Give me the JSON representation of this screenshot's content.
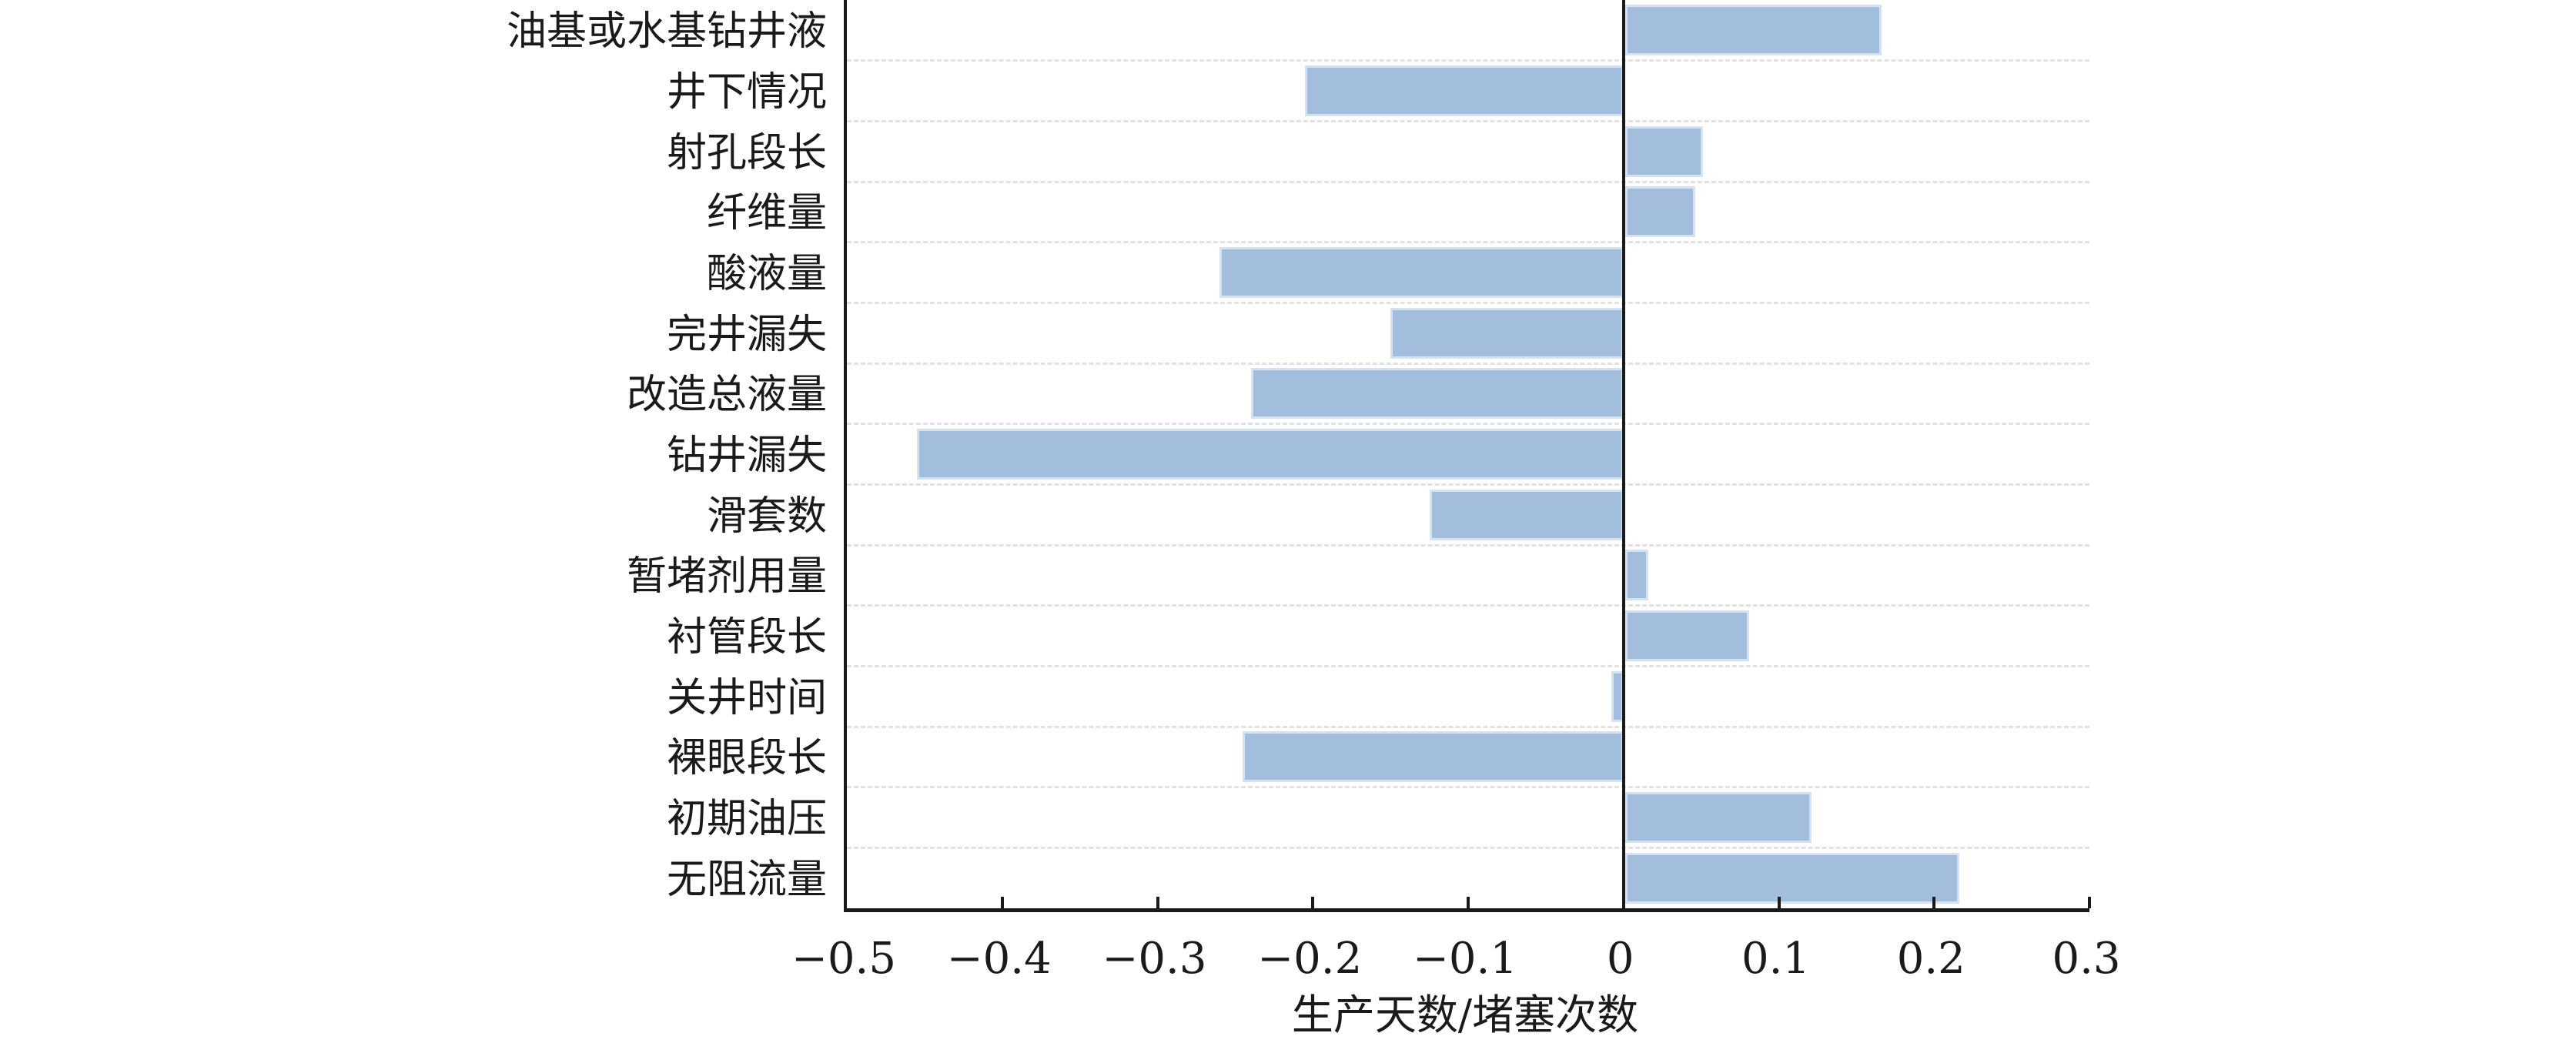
{
  "chart_data": {
    "type": "bar",
    "orientation": "horizontal",
    "title": "",
    "xlabel": "生产天数/堵塞次数",
    "ylabel": "",
    "categories": [
      "油基或水基钻井液",
      "井下情况",
      "射孔段长",
      "纤维量",
      "酸液量",
      "完井漏失",
      "改造总液量",
      "钻井漏失",
      "滑套数",
      "暂堵剂用量",
      "衬管段长",
      "关井时间",
      "裸眼段长",
      "初期油压",
      "无阻流量"
    ],
    "values": [
      0.165,
      -0.205,
      0.05,
      0.045,
      -0.26,
      -0.15,
      -0.24,
      -0.455,
      -0.125,
      0.015,
      0.08,
      -0.008,
      -0.245,
      0.12,
      0.215
    ],
    "xlim": [
      -0.5,
      0.3
    ],
    "x_ticks": [
      -0.5,
      -0.4,
      -0.3,
      -0.2,
      -0.1,
      0,
      0.1,
      0.2,
      0.3
    ],
    "x_tick_labels": [
      "−0.5",
      "−0.4",
      "−0.3",
      "−0.2",
      "−0.1",
      "0",
      "0.1",
      "0.2",
      "0.3"
    ],
    "legend": "none",
    "grid": "horizontal dashed lines between category rows",
    "colors": {
      "bar_fill": "#a2bedc",
      "bar_edge": "#d6e2f1",
      "axis": "#1a1a1a",
      "grid": "#e2e2e2",
      "text": "#1a1a1a",
      "background": "#ffffff"
    }
  }
}
